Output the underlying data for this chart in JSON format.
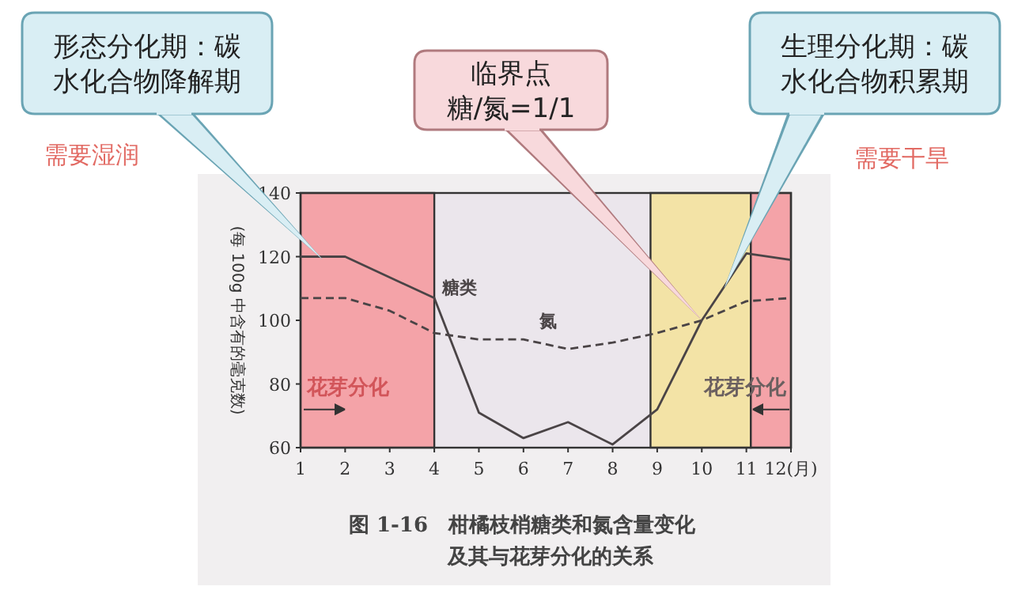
{
  "chart_data": {
    "type": "line",
    "title": "图 1-16　柑橘枝梢糖类和氮含量变化",
    "subtitle": "及其与花芽分化的关系",
    "ylabel": "(每 100g 中含有的毫克数)",
    "xlim": [
      1,
      12
    ],
    "ylim": [
      60,
      140
    ],
    "xticks": [
      1,
      2,
      3,
      4,
      5,
      6,
      7,
      8,
      9,
      10,
      11,
      {
        "value": 12,
        "label": "12(月)"
      }
    ],
    "yticks": [
      60,
      80,
      100,
      120,
      140
    ],
    "series": [
      {
        "name": "糖类",
        "color": "#4a4446",
        "line_style": "solid",
        "x": [
          1,
          2,
          4,
          5,
          6,
          7,
          8,
          9,
          10,
          11,
          12
        ],
        "values": [
          120,
          120,
          107,
          71,
          63,
          68,
          61,
          72,
          100,
          121,
          119
        ]
      },
      {
        "name": "氮",
        "color": "#4a4446",
        "line_style": "dashed",
        "x": [
          1,
          2,
          3,
          4,
          5,
          6,
          7,
          8,
          9,
          10,
          11,
          12
        ],
        "values": [
          107,
          107,
          103,
          96,
          94,
          94,
          91,
          93,
          96,
          100,
          106,
          107
        ]
      }
    ],
    "bands": [
      {
        "axis": "x",
        "from": 1,
        "to": 4,
        "label": "花芽分化",
        "color": "#f4a3a8"
      },
      {
        "axis": "x",
        "from": 8.85,
        "to": 11.1,
        "color": "#f3e3a6"
      },
      {
        "axis": "x",
        "from": 11.1,
        "to": 12,
        "label": "花芽分化",
        "color": "#f4a3a8"
      }
    ],
    "annotations": [
      "形态分化期：碳水化合物降解期",
      "需要湿润",
      "临界点糖/氮=1/1",
      "生理分化期：碳水化合物积累期",
      "需要干旱"
    ],
    "legend": false,
    "grid": false
  }
}
